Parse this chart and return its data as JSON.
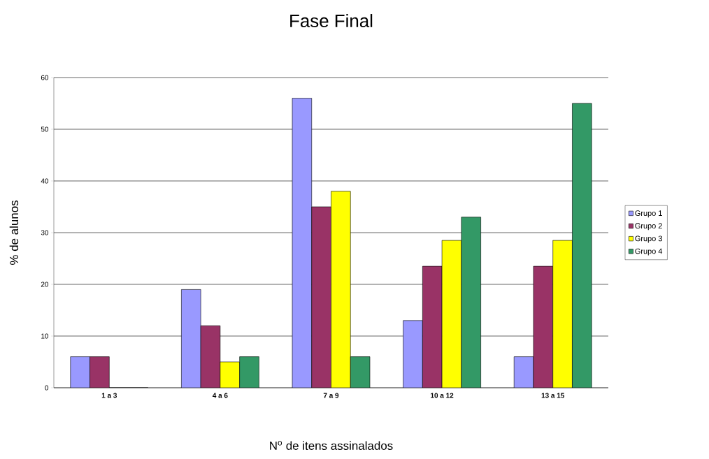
{
  "chart_data": {
    "type": "bar",
    "title": "Fase Final",
    "xlabel": "N$^{o}$ de itens assinalados",
    "ylabel": "% de alunos",
    "categories": [
      "1 a 3",
      "4 a 6",
      "7 a 9",
      "10 a 12",
      "13 a 15"
    ],
    "series": [
      {
        "name": "Grupo 1",
        "color": "#9999ff",
        "values": [
          6,
          19,
          56,
          13,
          6
        ]
      },
      {
        "name": "Grupo 2",
        "color": "#993366",
        "values": [
          6,
          12,
          35,
          23.5,
          23.5
        ]
      },
      {
        "name": "Grupo 3",
        "color": "#ffff00",
        "values": [
          0,
          5,
          38,
          28.5,
          28.5
        ]
      },
      {
        "name": "Grupo 4",
        "color": "#339966",
        "values": [
          0,
          6,
          6,
          33,
          55
        ]
      }
    ],
    "ylim": [
      0,
      60
    ],
    "yticks": [
      0,
      10,
      20,
      30,
      40,
      50,
      60
    ],
    "grid": "y",
    "legend": "right"
  }
}
